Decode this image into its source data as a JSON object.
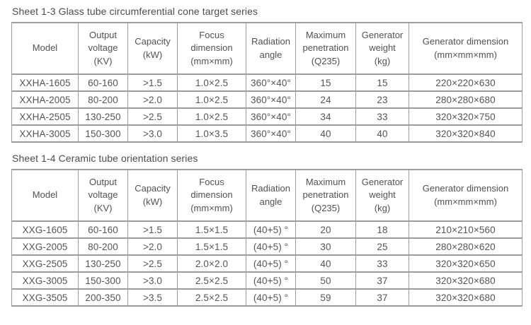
{
  "styles": {
    "background": "#ffffff",
    "border_color": "#9c9c9c",
    "title_text_color": "#4b4c4e",
    "cell_text_color": "#545557"
  },
  "tables": [
    {
      "title": "Sheet 1-3 Glass tube circumferential cone target series",
      "headers": [
        "Model",
        "Output\nvoltage\n(KV)",
        "Capacity\n(kW)",
        "Focus\ndimension\n(mm×mm)",
        "Radiation\nangle",
        "Maximum\npenetration\n(Q235)",
        "Generator\nweight\n(kg)",
        "Generator dimension\n(mm×mm×mm)"
      ],
      "rows": [
        [
          "XXHA-1605",
          "60-160",
          ">1.5",
          "1.0×2.5",
          "360°×40°",
          "15",
          "15",
          "220×220×630"
        ],
        [
          "XXHA-2005",
          "80-200",
          ">2.0",
          "1.0×2.5",
          "360°×40°",
          "24",
          "23",
          "280×280×680"
        ],
        [
          "XXHA-2505",
          "130-250",
          ">2.5",
          "1.0×2.5",
          "360°×40°",
          "34",
          "33",
          "320×320×750"
        ],
        [
          "XXHA-3005",
          "150-300",
          ">3.0",
          "1.0×3.5",
          "360°×40°",
          "40",
          "40",
          "320×320×840"
        ]
      ]
    },
    {
      "title": "Sheet 1-4 Ceramic tube orientation series",
      "headers": [
        "Model",
        "Output\nvoltage\n(KV)",
        "Capacity\n(kW)",
        "Focus\ndimension\n(mm×mm)",
        "Radiation\nangle",
        "Maximum\npenetration\n(Q235)",
        "Generator\nweight\n(kg)",
        "Generator dimension\n(mm×mm×mm)"
      ],
      "rows": [
        [
          "XXG-1605",
          "60-160",
          ">1.5",
          "1.5×1.5",
          "(40+5) °",
          "20",
          "18",
          "210×210×560"
        ],
        [
          "XXG-2005",
          "80-200",
          ">2.0",
          "1.5×1.5",
          "(40+5) °",
          "30",
          "25",
          "280×280×620"
        ],
        [
          "XXG-2505",
          "130-250",
          ">2.5",
          "2.0×2.0",
          "(40+5) °",
          "40",
          "33",
          "320×320×650"
        ],
        [
          "XXG-3005",
          "150-300",
          ">3.0",
          "2.5×2.5",
          "(40+5) °",
          "50",
          "37",
          "320×320×680"
        ],
        [
          "XXG-3505",
          "200-350",
          ">3.5",
          "2.5×2.5",
          "(40+5) °",
          "59",
          "37",
          "320×320×680"
        ]
      ]
    }
  ]
}
